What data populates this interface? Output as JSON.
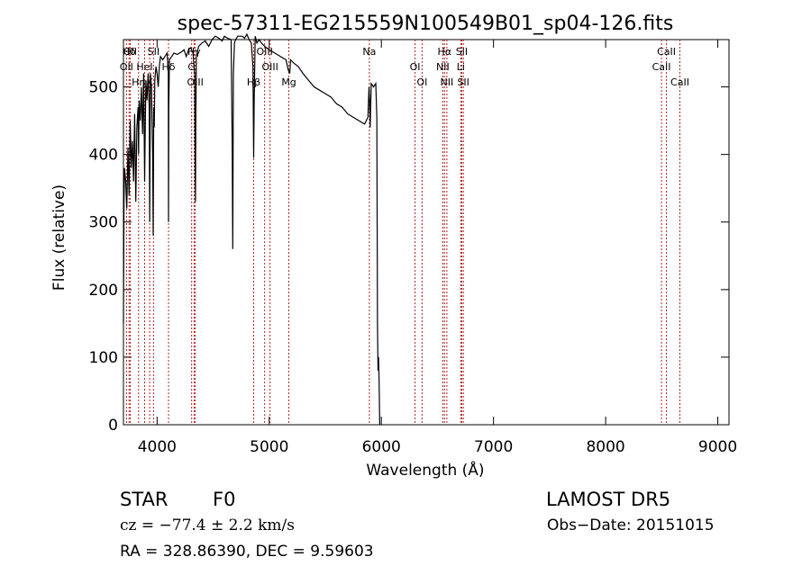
{
  "chart_data": {
    "type": "line",
    "title": "spec-57311-EG215559N100549B01_sp04-126.fits",
    "xlabel": "Wavelength (Å)",
    "ylabel": "Flux (relative)",
    "xlim": [
      3700,
      9100
    ],
    "ylim": [
      0,
      570
    ],
    "xticks": [
      4000,
      5000,
      6000,
      7000,
      8000,
      9000
    ],
    "yticks": [
      0,
      100,
      200,
      300,
      400,
      500
    ],
    "grid": false,
    "line_color": "#000000",
    "marker_color": "#b22222",
    "series": [
      {
        "x": [
          3700,
          3705,
          3710,
          3720,
          3730,
          3740,
          3750,
          3760,
          3770,
          3780,
          3790,
          3800,
          3810,
          3820,
          3830,
          3835,
          3840,
          3850,
          3860,
          3870,
          3880,
          3889,
          3895,
          3900,
          3910,
          3920,
          3930,
          3934,
          3940,
          3950,
          3960,
          3965,
          3970,
          3975,
          3980,
          3990,
          4000,
          4010,
          4020,
          4030,
          4050,
          4070,
          4090,
          4100,
          4102,
          4104,
          4110,
          4130,
          4150,
          4180,
          4200,
          4220,
          4240,
          4260,
          4280,
          4300,
          4320,
          4335,
          4340,
          4342,
          4345,
          4350,
          4370,
          4400,
          4430,
          4460,
          4490,
          4520,
          4550,
          4580,
          4600,
          4630,
          4660,
          4670,
          4675,
          4680,
          4690,
          4700,
          4720,
          4740,
          4760,
          4780,
          4800,
          4820,
          4840,
          4855,
          4861,
          4866,
          4875,
          4890,
          4910,
          4930,
          4960,
          5000,
          5050,
          5100,
          5150,
          5170,
          5183,
          5190,
          5220,
          5260,
          5300,
          5350,
          5400,
          5450,
          5500,
          5550,
          5600,
          5650,
          5700,
          5750,
          5800,
          5850,
          5880,
          5890,
          5895,
          5900,
          5910,
          5930,
          5950,
          5960,
          5965,
          5970,
          5975,
          5980,
          5985
        ],
        "y": [
          150,
          330,
          380,
          360,
          320,
          410,
          340,
          450,
          380,
          420,
          360,
          460,
          330,
          440,
          470,
          400,
          480,
          450,
          500,
          430,
          520,
          360,
          450,
          510,
          480,
          520,
          470,
          300,
          520,
          500,
          400,
          280,
          470,
          440,
          510,
          530,
          520,
          500,
          530,
          545,
          540,
          545,
          550,
          520,
          300,
          470,
          540,
          545,
          550,
          548,
          550,
          552,
          555,
          545,
          555,
          558,
          550,
          520,
          370,
          330,
          450,
          545,
          560,
          565,
          568,
          560,
          570,
          575,
          572,
          568,
          575,
          572,
          570,
          410,
          260,
          520,
          565,
          570,
          575,
          575,
          575,
          572,
          578,
          570,
          565,
          530,
          395,
          480,
          575,
          565,
          570,
          565,
          560,
          555,
          550,
          545,
          540,
          525,
          520,
          540,
          535,
          530,
          520,
          510,
          500,
          495,
          490,
          485,
          475,
          470,
          460,
          455,
          450,
          445,
          455,
          500,
          480,
          440,
          505,
          500,
          505,
          455,
          150,
          80,
          100,
          65,
          0
        ]
      }
    ],
    "lines": [
      {
        "label": "Hδ",
        "wavelength": 3750
      },
      {
        "label": "OII",
        "wavelength": 3727
      },
      {
        "label": "Hη",
        "wavelength": 3835
      },
      {
        "label": "OII",
        "wavelength": 3760
      },
      {
        "label": "HeI",
        "wavelength": 3889
      },
      {
        "label": "K",
        "wavelength": 3934
      },
      {
        "label": "SII",
        "wavelength": 3968
      },
      {
        "label": "Hδ",
        "wavelength": 4102
      },
      {
        "label": "OIII",
        "wavelength": 4340
      },
      {
        "label": "Hγ",
        "wavelength": 4330
      },
      {
        "label": "G",
        "wavelength": 4308
      },
      {
        "label": "Hβ",
        "wavelength": 4861
      },
      {
        "label": "OIII",
        "wavelength": 4959
      },
      {
        "label": "OIII",
        "wavelength": 5007
      },
      {
        "label": "Mg",
        "wavelength": 5175
      },
      {
        "label": "Na",
        "wavelength": 5893
      },
      {
        "label": "OI",
        "wavelength": 6300
      },
      {
        "label": "OI",
        "wavelength": 6363
      },
      {
        "label": "Hα",
        "wavelength": 6563
      },
      {
        "label": "NII",
        "wavelength": 6548
      },
      {
        "label": "NII",
        "wavelength": 6584
      },
      {
        "label": "SII",
        "wavelength": 6717
      },
      {
        "label": "Li",
        "wavelength": 6708
      },
      {
        "label": "SII",
        "wavelength": 6731
      },
      {
        "label": "CaII",
        "wavelength": 8542
      },
      {
        "label": "CaII",
        "wavelength": 8498
      },
      {
        "label": "CaII",
        "wavelength": 8662
      }
    ]
  },
  "info": {
    "object_class": "STAR",
    "subclass": "F0",
    "survey": "LAMOST DR5",
    "cz": "cz = −77.4 ± 2.2 km/s",
    "obs_date": "Obs−Date: 20151015",
    "coords": "RA = 328.86390, DEC =   9.59603"
  }
}
